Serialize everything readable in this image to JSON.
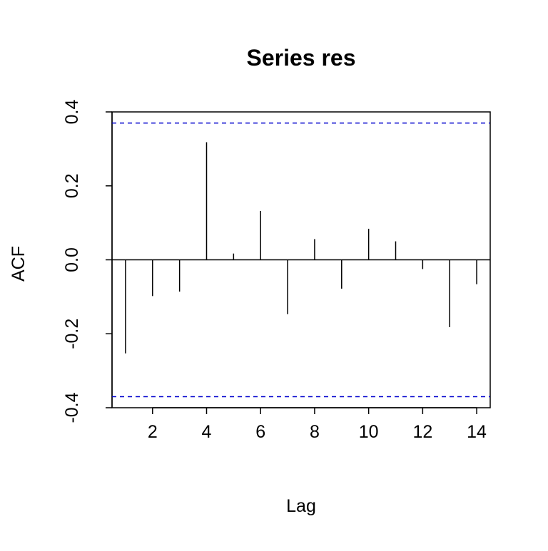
{
  "chart_data": {
    "type": "bar",
    "title": "Series res",
    "xlabel": "Lag",
    "ylabel": "ACF",
    "x": [
      1,
      2,
      3,
      4,
      5,
      6,
      7,
      8,
      9,
      10,
      11,
      12,
      13,
      14
    ],
    "values": [
      -0.253,
      -0.098,
      -0.086,
      0.318,
      0.017,
      0.132,
      -0.147,
      0.056,
      -0.078,
      0.084,
      0.05,
      -0.025,
      -0.182,
      -0.066
    ],
    "confidence_bound": 0.37,
    "confidence_color": "#0000cd",
    "xlim": [
      0.5,
      14.5
    ],
    "ylim": [
      -0.4,
      0.4
    ],
    "x_ticks": [
      2,
      4,
      6,
      8,
      10,
      12,
      14
    ],
    "y_ticks": [
      -0.4,
      -0.2,
      0.0,
      0.2,
      0.4
    ],
    "x_tick_labels": [
      "2",
      "4",
      "6",
      "8",
      "10",
      "12",
      "14"
    ],
    "y_tick_labels": [
      "-0.4",
      "-0.2",
      "0.0",
      "0.2",
      "0.4"
    ],
    "grid": false
  }
}
